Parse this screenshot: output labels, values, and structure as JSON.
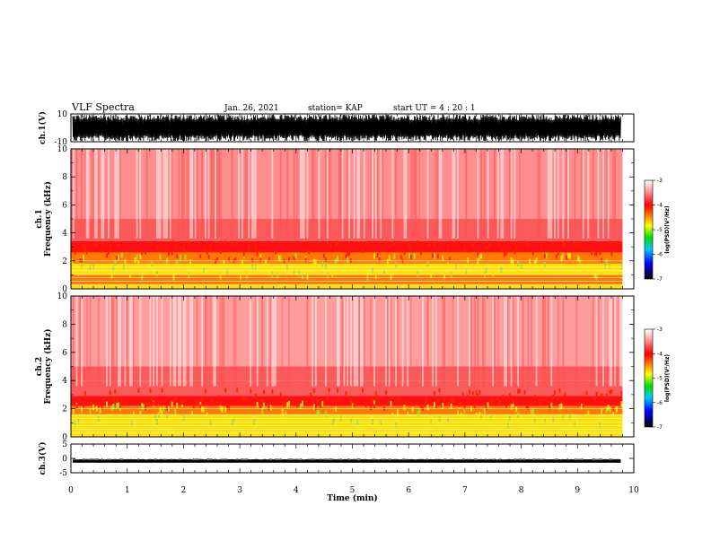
{
  "header": {
    "title": "VLF Spectra",
    "date": "Jan. 26, 2021",
    "station": "station= KAP",
    "start": "start  UT =   4 : 20 : 1"
  },
  "colorbar": {
    "label": "log(PSD)(V²/Hz)",
    "ticks": [
      "-3",
      "-4",
      "-5",
      "-6",
      "-7"
    ],
    "stops": [
      "#ffffff",
      "#ff8080",
      "#ff0000",
      "#ff7a00",
      "#ffff00",
      "#00e000",
      "#00c0ff",
      "#0000ff",
      "#000000"
    ]
  },
  "chart_data": [
    {
      "type": "line",
      "name": "waveform-ch1",
      "ylabel": "ch.1(V)",
      "ylim": [
        -10,
        10
      ],
      "yticks": [
        "10",
        "-10"
      ],
      "xlim": [
        0,
        10
      ],
      "description_level": "saturated oscillation mostly between -10 and 10 V"
    },
    {
      "type": "heatmap",
      "ylabel": "ch.1\nFrequency (kHz)",
      "ylabel_lines": [
        "ch.1",
        "Frequency (kHz)"
      ],
      "ylim": [
        0,
        10
      ],
      "yticks": [
        "0",
        "2",
        "4",
        "6",
        "8",
        "10"
      ],
      "xlim": [
        0,
        9.8
      ],
      "bands": [
        {
          "f": [
            0,
            0.3
          ],
          "level": 0.62
        },
        {
          "f": [
            0.3,
            1.0
          ],
          "level": 0.58
        },
        {
          "f": [
            1.0,
            1.8
          ],
          "level": 0.66
        },
        {
          "f": [
            1.8,
            2.6
          ],
          "level": 0.55
        },
        {
          "f": [
            2.6,
            3.4
          ],
          "level": 0.48
        },
        {
          "f": [
            3.4,
            5.0
          ],
          "level": 0.22
        },
        {
          "f": [
            5.0,
            10.0
          ],
          "level": 0.16
        }
      ]
    },
    {
      "type": "heatmap",
      "ylabel_lines": [
        "ch.2",
        "Frequency (kHz)"
      ],
      "ylim": [
        0,
        10
      ],
      "yticks": [
        "0",
        "2",
        "4",
        "6",
        "8",
        "10"
      ],
      "xlim": [
        0,
        9.8
      ],
      "bands": [
        {
          "f": [
            0,
            0.4
          ],
          "level": 0.6
        },
        {
          "f": [
            0.4,
            1.6
          ],
          "level": 0.66
        },
        {
          "f": [
            1.6,
            2.2
          ],
          "level": 0.52
        },
        {
          "f": [
            2.2,
            2.9
          ],
          "level": 0.45
        },
        {
          "f": [
            2.9,
            4.0
          ],
          "level": 0.22
        },
        {
          "f": [
            4.0,
            5.0
          ],
          "level": 0.28
        },
        {
          "f": [
            5.0,
            10.0
          ],
          "level": 0.14
        }
      ]
    },
    {
      "type": "line",
      "name": "waveform-ch3",
      "ylabel": "ch.3(V)",
      "ylim": [
        -5,
        5
      ],
      "yticks": [
        "5",
        "0",
        "-5"
      ],
      "xlim": [
        0,
        10
      ],
      "description_level": "near-constant trace around -1 V"
    }
  ],
  "xaxis": {
    "label": "Time (min)",
    "ticks": [
      "0",
      "1",
      "2",
      "3",
      "4",
      "5",
      "6",
      "7",
      "8",
      "9",
      "10"
    ],
    "xlim": [
      0,
      10
    ]
  }
}
